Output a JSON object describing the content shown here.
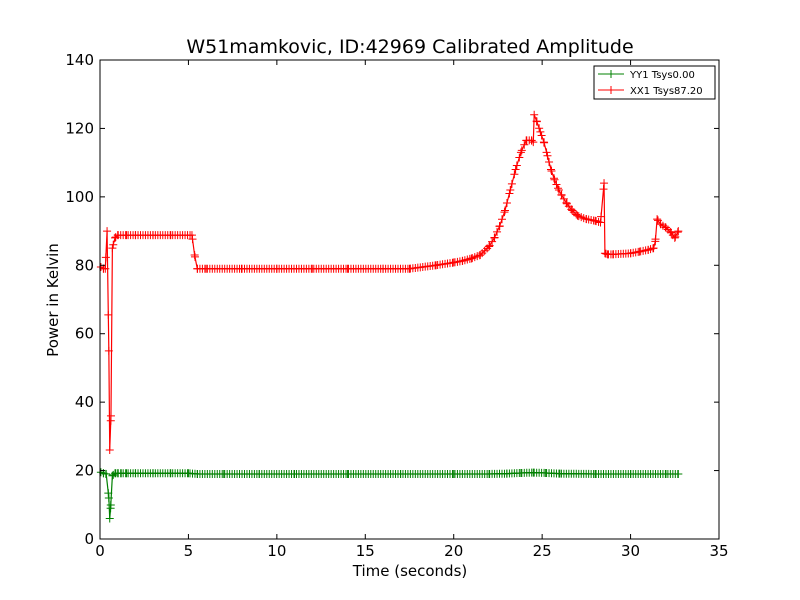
{
  "chart_data": {
    "type": "line",
    "title": "W51mamkovic, ID:42969 Calibrated Amplitude",
    "xlabel": "Time (seconds)",
    "ylabel": "Power in Kelvin",
    "xlim": [
      0,
      35
    ],
    "ylim": [
      0,
      140
    ],
    "xticks": [
      "0",
      "5",
      "10",
      "15",
      "20",
      "25",
      "30",
      "35"
    ],
    "yticks": [
      "0",
      "20",
      "40",
      "60",
      "80",
      "100",
      "120",
      "140"
    ],
    "grid": false,
    "legend_position": "top-right",
    "series": [
      {
        "name": "YY1 Tsys0.00",
        "color": "#008000",
        "marker": "+",
        "x": [
          0.05,
          0.2,
          0.35,
          0.5,
          0.55,
          0.6,
          0.7,
          0.85,
          1.0,
          1.2,
          1.5,
          2.0,
          3.0,
          4.0,
          5.0,
          5.5,
          7.0,
          9.0,
          11.0,
          14.0,
          17.0,
          20.0,
          22.0,
          23.0,
          23.8,
          24.5,
          25.2,
          26.0,
          28.0,
          30.0,
          32.0,
          32.7
        ],
        "y": [
          19.5,
          19.2,
          19.0,
          12.0,
          6.0,
          9.0,
          18.5,
          19.2,
          19.2,
          19.2,
          19.2,
          19.2,
          19.2,
          19.2,
          19.2,
          19.0,
          19.0,
          19.0,
          19.0,
          19.0,
          19.0,
          19.0,
          19.0,
          19.1,
          19.3,
          19.4,
          19.3,
          19.1,
          19.0,
          19.0,
          19.0,
          19.0
        ]
      },
      {
        "name": "XX1 Tsys87.20",
        "color": "#ff0000",
        "marker": "+",
        "x": [
          0.05,
          0.2,
          0.3,
          0.4,
          0.5,
          0.55,
          0.62,
          0.7,
          0.85,
          1.0,
          1.5,
          2.0,
          3.0,
          4.0,
          5.2,
          5.35,
          5.5,
          6.0,
          8.0,
          10.0,
          12.0,
          14.0,
          16.0,
          17.5,
          19.0,
          20.0,
          20.5,
          21.0,
          21.5,
          22.0,
          22.3,
          22.6,
          22.9,
          23.2,
          23.5,
          23.8,
          24.1,
          24.4,
          24.5,
          24.55,
          24.7,
          24.9,
          25.1,
          25.3,
          25.5,
          25.7,
          25.9,
          26.1,
          26.4,
          26.7,
          27.0,
          27.5,
          28.0,
          28.3,
          28.5,
          28.55,
          28.7,
          29.0,
          30.0,
          30.5,
          31.0,
          31.3,
          31.4,
          31.5,
          31.7,
          32.0,
          32.3,
          32.5,
          32.7
        ],
        "y": [
          79.5,
          79.0,
          79.0,
          90.0,
          55.0,
          26.0,
          36.0,
          85.0,
          88.0,
          88.8,
          88.8,
          88.8,
          88.8,
          88.8,
          88.8,
          83.0,
          79.0,
          79.0,
          79.0,
          79.0,
          79.0,
          79.0,
          79.0,
          79.0,
          80.0,
          80.8,
          81.3,
          82.0,
          83.0,
          85.5,
          88.0,
          91.5,
          96.0,
          102.0,
          108.0,
          113.0,
          116.5,
          116.5,
          116.0,
          124.0,
          122.0,
          119.0,
          116.0,
          112.0,
          108.0,
          105.0,
          102.5,
          100.5,
          98.0,
          96.0,
          94.5,
          93.5,
          93.0,
          92.5,
          104.0,
          83.5,
          83.2,
          83.2,
          83.5,
          84.0,
          84.5,
          85.0,
          87.0,
          93.5,
          92.0,
          91.0,
          89.5,
          88.0,
          90.0
        ]
      }
    ]
  }
}
